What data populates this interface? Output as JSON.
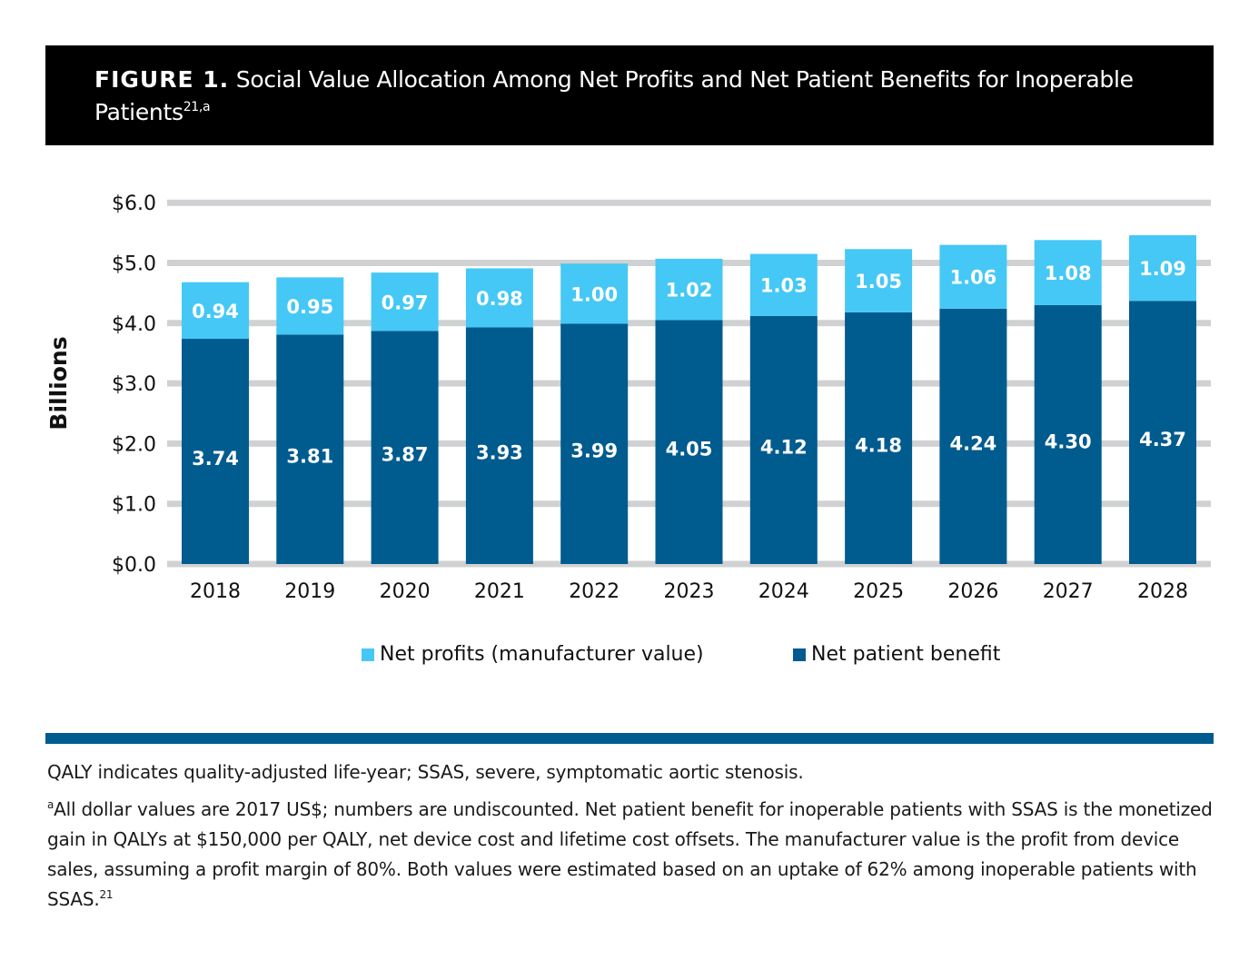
{
  "figure": {
    "label": "FIGURE 1.",
    "title": "Social Value Allocation Among Net Profits and Net Patient Benefits for Inoperable Patients",
    "title_superscript": "21,a"
  },
  "chart_data": {
    "type": "bar",
    "stacked": true,
    "title": "Social Value Allocation Among Net Profits and Net Patient Benefits for Inoperable Patients",
    "xlabel": "",
    "ylabel": "Billions",
    "ylim": [
      0,
      6
    ],
    "yticks": [
      0,
      1,
      2,
      3,
      4,
      5,
      6
    ],
    "ytick_labels": [
      "$0.0",
      "$1.0",
      "$2.0",
      "$3.0",
      "$4.0",
      "$5.0",
      "$6.0"
    ],
    "grid": true,
    "legend_position": "bottom",
    "categories": [
      "2018",
      "2019",
      "2020",
      "2021",
      "2022",
      "2023",
      "2024",
      "2025",
      "2026",
      "2027",
      "2028"
    ],
    "series": [
      {
        "name": "Net patient benefit",
        "color": "#005b8e",
        "values": [
          3.74,
          3.81,
          3.87,
          3.93,
          3.99,
          4.05,
          4.12,
          4.18,
          4.24,
          4.3,
          4.37
        ],
        "labels": [
          "3.74",
          "3.81",
          "3.87",
          "3.93",
          "3.99",
          "4.05",
          "4.12",
          "4.18",
          "4.24",
          "4.30",
          "4.37"
        ]
      },
      {
        "name": "Net profits (manufacturer value)",
        "color": "#45c8f5",
        "values": [
          0.94,
          0.95,
          0.97,
          0.98,
          1.0,
          1.02,
          1.03,
          1.05,
          1.06,
          1.08,
          1.09
        ],
        "labels": [
          "0.94",
          "0.95",
          "0.97",
          "0.98",
          "1.00",
          "1.02",
          "1.03",
          "1.05",
          "1.06",
          "1.08",
          "1.09"
        ]
      }
    ]
  },
  "legend": {
    "profits_label": "Net profits (manufacturer value)",
    "benefit_label": "Net patient benefit",
    "profits_color": "#45c8f5",
    "benefit_color": "#005b8e"
  },
  "notes": {
    "abbreviations": "QALY indicates quality-adjusted life-year; SSAS, severe, symptomatic aortic stenosis.",
    "footnote_marker": "a",
    "footnote": "All dollar values are 2017 US$; numbers are undiscounted. Net patient benefit for inoperable patients with SSAS is the monetized gain in QALYs at $150,000 per QALY, net device cost and lifetime cost offsets. The manufacturer value is the profit from device sales, assuming a profit margin of 80%. Both values were estimated based on an uptake of 62% among inoperable patients with SSAS.",
    "footnote_ref": "21"
  }
}
